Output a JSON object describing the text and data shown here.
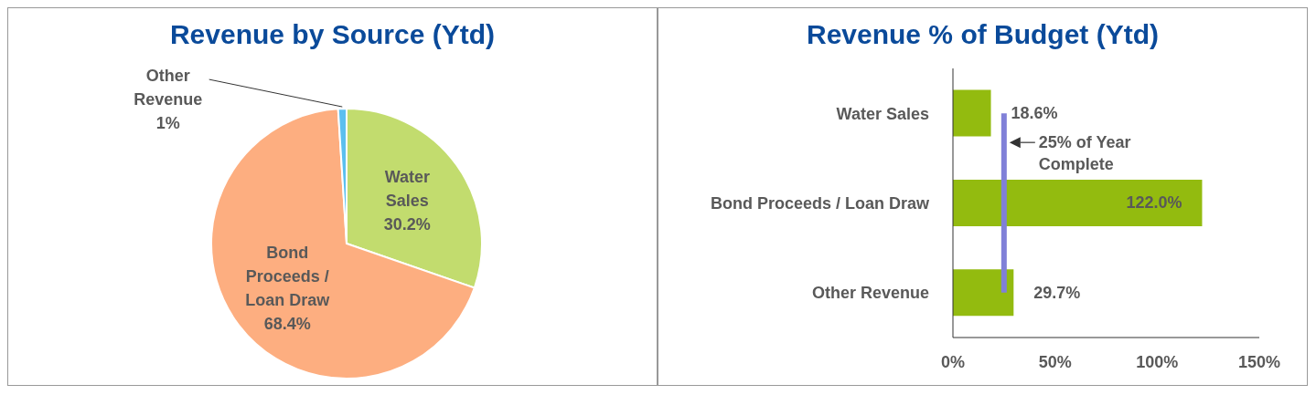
{
  "chart_data": [
    {
      "type": "pie",
      "title": "Revenue by Source (Ytd)",
      "categories": [
        "Water Sales",
        "Bond Proceeds / Loan Draw",
        "Other Revenue"
      ],
      "values": [
        30.2,
        68.4,
        1
      ],
      "colors": [
        "#c2dc6e",
        "#fdae80",
        "#5bbfef"
      ],
      "value_labels": [
        "30.2%",
        "68.4%",
        "1%"
      ]
    },
    {
      "type": "bar",
      "orientation": "horizontal",
      "title": "Revenue % of Budget (Ytd)",
      "categories": [
        "Water Sales",
        "Bond Proceeds / Loan Draw",
        "Other Revenue"
      ],
      "values": [
        18.6,
        122.0,
        29.7
      ],
      "color": "#93bb0f",
      "value_labels": [
        "18.6%",
        "122.0%",
        "29.7%"
      ],
      "xlim": [
        0,
        150
      ],
      "xticks": [
        {
          "value": 0,
          "label": "0%"
        },
        {
          "value": 50,
          "label": "50%"
        },
        {
          "value": 100,
          "label": "100%"
        },
        {
          "value": 150,
          "label": "150%"
        }
      ],
      "ref_lines": [
        {
          "axis": "x",
          "value": 25,
          "label": "25% of Year Complete",
          "color": "#8080d8"
        }
      ]
    }
  ]
}
